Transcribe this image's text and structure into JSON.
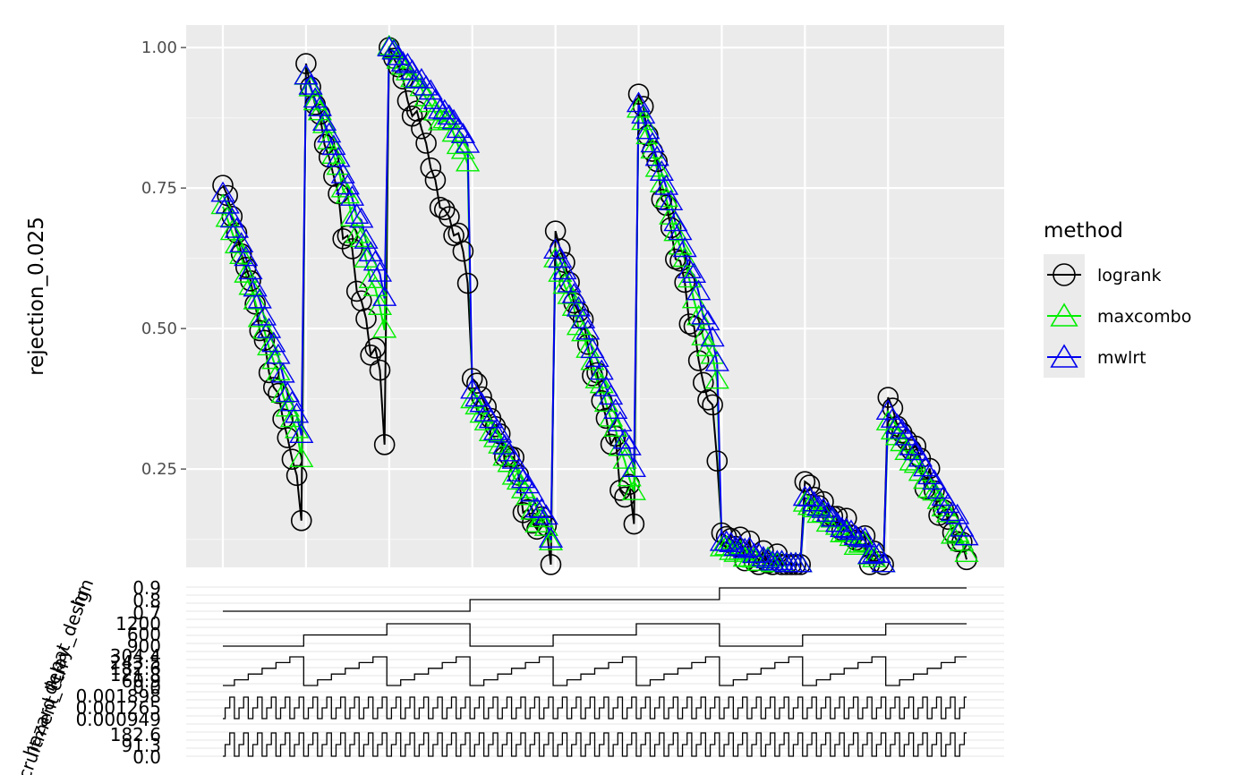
{
  "chart_data": {
    "type": "line",
    "title": "",
    "xlabel": "",
    "ylabel": "rejection_0.025",
    "ylim": [
      0.075,
      1.04
    ],
    "yticks": [
      0.25,
      0.5,
      0.75,
      1.0
    ],
    "ytick_labels": [
      "0.25",
      "0.50",
      "0.75",
      "1.00"
    ],
    "grid": true,
    "legend": {
      "title": "method",
      "position": "right",
      "entries": [
        {
          "name": "logrank",
          "color": "#000000",
          "shape": "circle"
        },
        {
          "name": "maxcombo",
          "color": "#00ee00",
          "shape": "triangle"
        },
        {
          "name": "mwlrt",
          "color": "#0000ee",
          "shape": "triangle"
        }
      ]
    },
    "scenarios_per_group": 6,
    "reps_per_scenario": 3,
    "x_reps_per_group": 18,
    "groups": [
      {
        "logrank_start": 0.76,
        "logrank_end": 0.21,
        "maxcombo_start": 0.72,
        "maxcombo_end": 0.28,
        "mwlrt_start": 0.74,
        "mwlrt_end": 0.32
      },
      {
        "logrank_start": 0.97,
        "logrank_end": 0.36,
        "maxcombo_start": 0.95,
        "maxcombo_end": 0.52,
        "mwlrt_start": 0.95,
        "mwlrt_end": 0.57
      },
      {
        "logrank_start": 1.0,
        "logrank_end": 0.62,
        "maxcombo_start": 1.0,
        "maxcombo_end": 0.81,
        "mwlrt_start": 1.0,
        "mwlrt_end": 0.84
      },
      {
        "logrank_start": 0.41,
        "logrank_end": 0.1,
        "maxcombo_start": 0.37,
        "maxcombo_end": 0.12,
        "mwlrt_start": 0.39,
        "mwlrt_end": 0.14
      },
      {
        "logrank_start": 0.67,
        "logrank_end": 0.16,
        "maxcombo_start": 0.62,
        "maxcombo_end": 0.22,
        "mwlrt_start": 0.64,
        "mwlrt_end": 0.26
      },
      {
        "logrank_start": 0.92,
        "logrank_end": 0.3,
        "maxcombo_start": 0.89,
        "maxcombo_end": 0.41,
        "mwlrt_start": 0.9,
        "mwlrt_end": 0.45
      },
      {
        "logrank_start": 0.13,
        "logrank_end": 0.06,
        "maxcombo_start": 0.11,
        "maxcombo_end": 0.06,
        "mwlrt_start": 0.12,
        "mwlrt_end": 0.07
      },
      {
        "logrank_start": 0.22,
        "logrank_end": 0.07,
        "maxcombo_start": 0.19,
        "maxcombo_end": 0.08,
        "mwlrt_start": 0.2,
        "mwlrt_end": 0.09
      },
      {
        "logrank_start": 0.37,
        "logrank_end": 0.1,
        "maxcombo_start": 0.33,
        "maxcombo_end": 0.11,
        "mwlrt_start": 0.35,
        "mwlrt_end": 0.13
      }
    ],
    "design_panel": {
      "factors": [
        {
          "name": "hr",
          "labels": [
            "0.9",
            "0.8",
            "0.7"
          ]
        },
        {
          "name": "n_pat_design",
          "labels": [
            "1200",
            "600",
            "900"
          ]
        },
        {
          "name": "delay",
          "labels": [
            "304.4",
            "243.5",
            "182.6",
            "121.8",
            "60.9",
            "0.0"
          ]
        },
        {
          "name": "hazard_ctrl",
          "labels": [
            "0.001898",
            "0.001265",
            "0.000949"
          ]
        },
        {
          "name": "recruitment",
          "labels": [
            "182.6",
            "91.3",
            "0.0"
          ]
        }
      ]
    }
  }
}
